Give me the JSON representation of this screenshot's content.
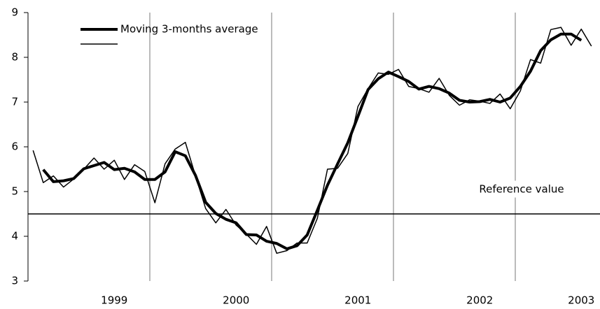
{
  "chart_data": {
    "type": "line",
    "categories": [
      null,
      null,
      null,
      null,
      null,
      null,
      null,
      null,
      "1999",
      null,
      null,
      null,
      null,
      null,
      null,
      null,
      null,
      null,
      null,
      null,
      "2000",
      null,
      null,
      null,
      null,
      null,
      null,
      null,
      null,
      null,
      null,
      null,
      "2001",
      null,
      null,
      null,
      null,
      null,
      null,
      null,
      null,
      null,
      null,
      null,
      "2002",
      null,
      null,
      null,
      null,
      null,
      null,
      null,
      null,
      null,
      "2003",
      null
    ],
    "series": [
      {
        "name": "Moving 3-months average",
        "color": "#000000",
        "width": 4,
        "values": [
          null,
          5.49,
          5.22,
          5.24,
          5.29,
          5.51,
          5.58,
          5.65,
          5.49,
          5.52,
          5.44,
          5.27,
          5.27,
          5.44,
          5.89,
          5.8,
          5.36,
          4.76,
          4.51,
          4.38,
          4.3,
          4.04,
          4.03,
          3.89,
          3.84,
          3.72,
          3.79,
          4.03,
          4.58,
          5.14,
          5.62,
          6.09,
          6.68,
          7.28,
          7.52,
          7.67,
          7.57,
          7.46,
          7.29,
          7.35,
          7.3,
          7.2,
          7.04,
          7.0,
          7.01,
          7.06,
          7.0,
          7.09,
          7.35,
          7.69,
          8.15,
          8.39,
          8.52,
          8.52,
          8.38,
          null
        ]
      },
      {
        "color": "#000000",
        "width": 1.5,
        "values": [
          5.92,
          5.2,
          5.35,
          5.1,
          5.28,
          5.5,
          5.75,
          5.5,
          5.7,
          5.27,
          5.6,
          5.45,
          4.75,
          5.62,
          5.95,
          6.1,
          5.35,
          4.62,
          4.3,
          4.6,
          4.25,
          4.05,
          3.82,
          4.22,
          3.62,
          3.68,
          3.85,
          3.85,
          4.4,
          5.5,
          5.52,
          5.85,
          6.9,
          7.3,
          7.65,
          7.62,
          7.73,
          7.35,
          7.3,
          7.22,
          7.53,
          7.15,
          6.93,
          7.05,
          7.02,
          6.97,
          7.18,
          6.85,
          7.25,
          7.95,
          7.87,
          8.62,
          8.67,
          8.27,
          8.63,
          8.25
        ]
      }
    ],
    "ylim": [
      3,
      9
    ],
    "yticks": [
      3,
      4,
      5,
      6,
      7,
      8,
      9
    ],
    "reference_line": {
      "value": 4.5,
      "label": "Reference value"
    },
    "year_grid": true,
    "grid_color": "#bbbbbb",
    "legend": "upper left"
  }
}
